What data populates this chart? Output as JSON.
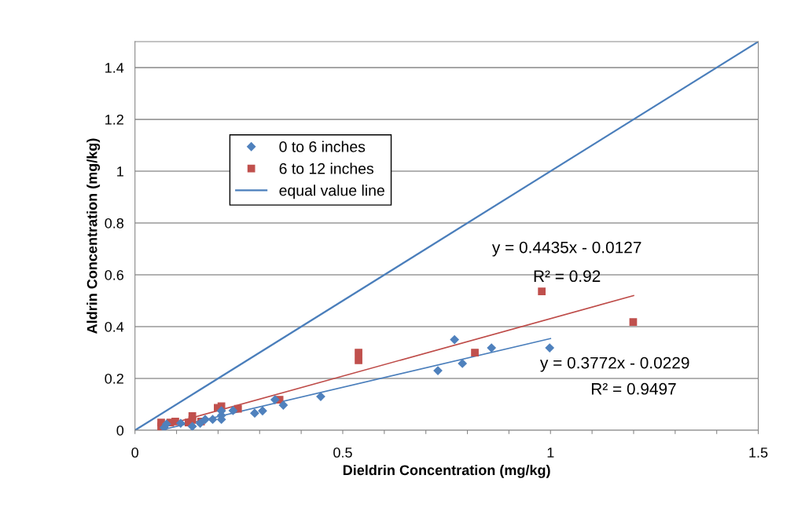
{
  "chart_data": {
    "type": "scatter",
    "xlabel": "Dieldrin Concentration (mg/kg)",
    "ylabel": "Aldrin Concentration (mg/kg)",
    "xlim": [
      0,
      1.5
    ],
    "ylim": [
      0,
      1.5
    ],
    "xticks": [
      0,
      {
        "value": 0.1,
        "label": null
      },
      {
        "value": 0.2,
        "label": null
      },
      {
        "value": 0.3,
        "label": null
      },
      {
        "value": 0.4,
        "label": null
      },
      0.5,
      {
        "value": 0.6,
        "label": null
      },
      {
        "value": 0.7,
        "label": null
      },
      {
        "value": 0.8,
        "label": null
      },
      {
        "value": 0.9,
        "label": null
      },
      1,
      {
        "value": 1.1,
        "label": null
      },
      {
        "value": 1.2,
        "label": null
      },
      {
        "value": 1.3,
        "label": null
      },
      {
        "value": 1.4,
        "label": null
      },
      1.5
    ],
    "yticks": [
      0,
      0.2,
      0.4,
      0.6,
      0.8,
      1,
      1.2,
      1.4
    ],
    "grid": "y",
    "legend": "left",
    "series": [
      {
        "name": "0 to 6 inches",
        "marker": "diamond",
        "color": "#4f81bd",
        "x": [
          0.07,
          0.076,
          0.11,
          0.138,
          0.157,
          0.169,
          0.187,
          0.208,
          0.208,
          0.208,
          0.236,
          0.288,
          0.307,
          0.337,
          0.357,
          0.447,
          0.729,
          0.769,
          0.788,
          0.858,
          0.998
        ],
        "values": [
          0.01,
          0.024,
          0.027,
          0.015,
          0.027,
          0.042,
          0.042,
          0.042,
          0.057,
          0.075,
          0.076,
          0.066,
          0.075,
          0.118,
          0.097,
          0.13,
          0.23,
          0.35,
          0.258,
          0.318,
          0.318
        ]
      },
      {
        "name": "6 to 12 inches",
        "marker": "square",
        "color": "#c0504d",
        "x": [
          0.063,
          0.063,
          0.085,
          0.097,
          0.129,
          0.138,
          0.138,
          0.159,
          0.199,
          0.208,
          0.248,
          0.348,
          0.538,
          0.538,
          0.818,
          0.979,
          1.199
        ],
        "values": [
          0.03,
          0.015,
          0.03,
          0.034,
          0.03,
          0.055,
          0.04,
          0.034,
          0.087,
          0.093,
          0.083,
          0.118,
          0.3,
          0.27,
          0.3,
          0.536,
          0.418
        ]
      },
      {
        "name": "equal value line",
        "type": "line",
        "marker": "none",
        "color": "#4a7ebb",
        "x": [
          0,
          1.5
        ],
        "values": [
          0,
          1.5
        ]
      },
      {
        "type": "line",
        "marker": "none",
        "color": "#4a7ebb",
        "x": [
          0.07,
          1.0
        ],
        "values": [
          0.004,
          0.354
        ]
      },
      {
        "type": "line",
        "marker": "none",
        "color": "#be4b48",
        "x": [
          0.063,
          1.2
        ],
        "values": [
          0.015,
          0.52
        ]
      }
    ],
    "annotations": [
      "y = 0.4435x - 0.0127",
      "R² = 0.92",
      "y = 0.3772x - 0.0229",
      "R² = 0.9497"
    ]
  }
}
